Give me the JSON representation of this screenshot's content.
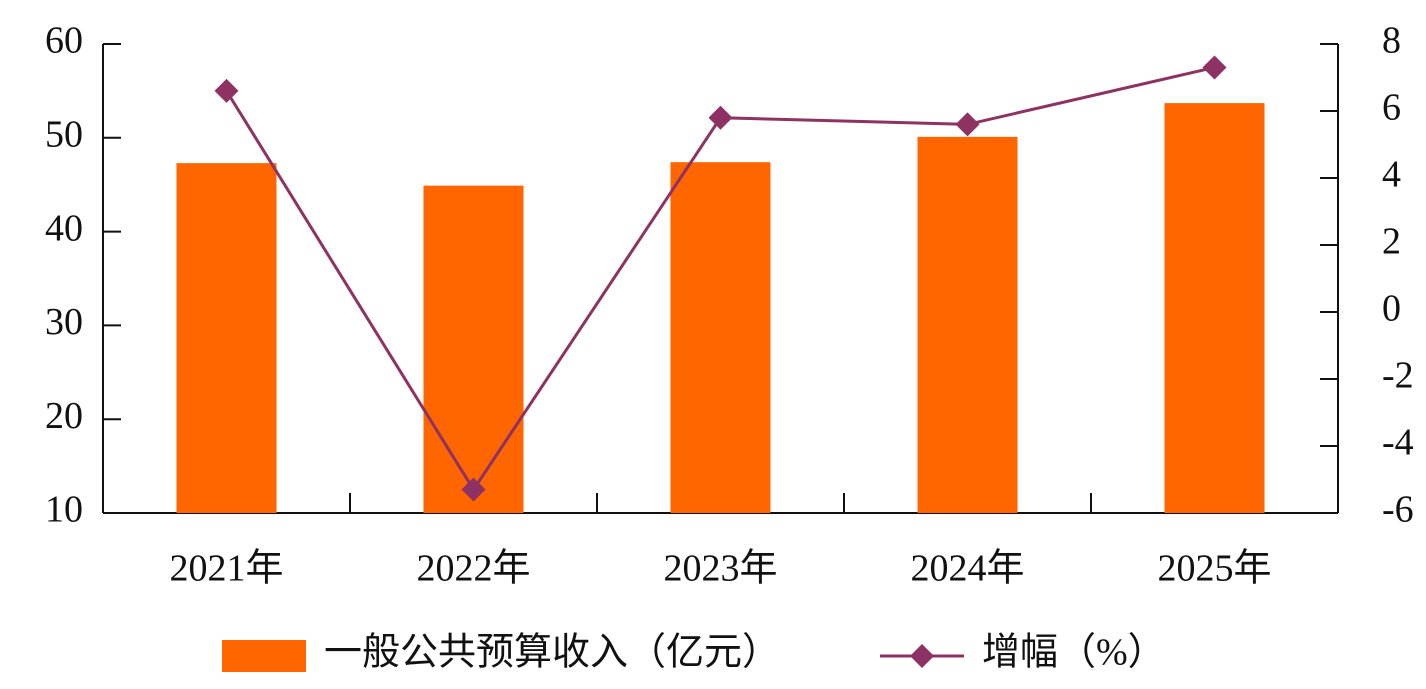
{
  "chart_data": {
    "type": "bar-line",
    "categories": [
      "2021年",
      "2022年",
      "2023年",
      "2024年",
      "2025年"
    ],
    "series": [
      {
        "name": "一般公共预算收入（亿元）",
        "type": "bar",
        "color": "#ff6600",
        "values": [
          47.3,
          44.9,
          47.4,
          50.1,
          53.7
        ]
      },
      {
        "name": "增幅（%）",
        "type": "line",
        "axis": "y2",
        "color": "#8e3163",
        "values": [
          6.6,
          -5.3,
          5.8,
          5.6,
          7.3
        ]
      }
    ],
    "ylim": [
      10,
      60
    ],
    "yticks": [
      10,
      20,
      30,
      40,
      50,
      60
    ],
    "y2lim": [
      -6,
      8
    ],
    "y2ticks": [
      -6,
      -4,
      -2,
      0,
      2,
      4,
      6,
      8
    ],
    "legend": "bottom"
  }
}
